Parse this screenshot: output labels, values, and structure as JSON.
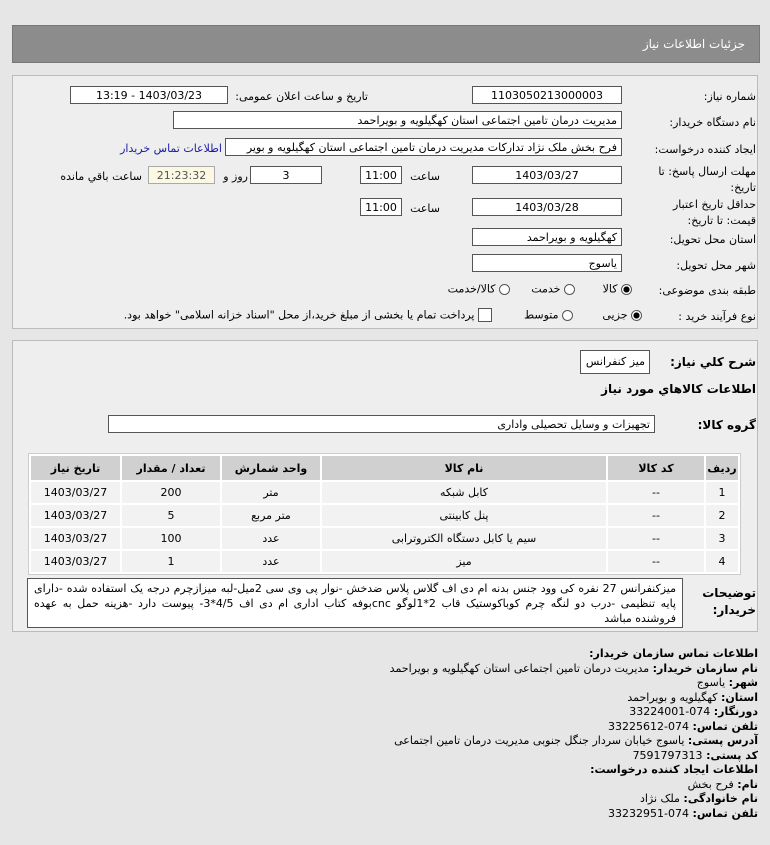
{
  "header": {
    "title": "جزئیات اطلاعات نیاز"
  },
  "form": {
    "need_number_label": "شماره نیاز:",
    "need_number": "1103050213000003",
    "announce_label": "تاریخ و ساعت اعلان عمومی:",
    "announce_value": "1403/03/23 - 13:19",
    "buyer_label": "نام دستگاه خریدار:",
    "buyer": "مدیریت درمان تامین اجتماعی استان کهگیلویه و بویراحمد",
    "creator_label": "ایجاد کننده درخواست:",
    "creator": "فرح بخش ملک نژاد تدارکات مدیریت درمان تامین اجتماعی استان کهگیلویه و بویر",
    "contact_link": "اطلاعات تماس خریدار",
    "deadline_label": "مهلت ارسال پاسخ: تا تاریخ:",
    "deadline_date": "1403/03/27",
    "time_label": "ساعت",
    "deadline_time": "11:00",
    "days": "3",
    "days_label": "روز و",
    "remaining": "21:23:32",
    "remaining_label": "ساعت باقي مانده",
    "validity_label": "حداقل تاریخ اعتبار قیمت: تا تاریخ:",
    "validity_date": "1403/03/28",
    "validity_time": "11:00",
    "province_label": "استان محل تحویل:",
    "province": "کهگیلویه و بویراحمد",
    "city_label": "شهر محل تحویل:",
    "city": "یاسوج",
    "category_label": "طبقه بندی موضوعی:",
    "category_options": [
      "کالا",
      "خدمت",
      "کالا/خدمت"
    ],
    "category_selected": "کالا",
    "process_label": "نوع فرآیند خرید :",
    "process_options": [
      "جزیی",
      "متوسط"
    ],
    "process_selected": "جزیی",
    "payment_note": "پرداخت تمام یا بخشی از مبلغ خرید،از محل \"اسناد خزانه اسلامی\" خواهد بود."
  },
  "need": {
    "summary_label": "شرح کلي نياز:",
    "summary": "میز کنفرانس",
    "goods_title": "اطلاعات كالاهاي مورد نياز",
    "group_label": "گروه کالا:",
    "group": "تجهیزات و وسایل تحصیلی واداری",
    "columns": [
      "ردیف",
      "کد کالا",
      "نام کالا",
      "واحد شمارش",
      "تعداد / مقدار",
      "تاریخ نیاز"
    ],
    "rows": [
      [
        "1",
        "--",
        "کابل شبکه",
        "متر",
        "200",
        "1403/03/27"
      ],
      [
        "2",
        "--",
        "پنل کابینتی",
        "متر مربع",
        "5",
        "1403/03/27"
      ],
      [
        "3",
        "--",
        "سیم یا کابل دستگاه الکتروترابی",
        "عدد",
        "100",
        "1403/03/27"
      ],
      [
        "4",
        "--",
        "میز",
        "عدد",
        "1",
        "1403/03/27"
      ]
    ],
    "desc_label": "توضیحات خریدار:",
    "desc": "میزکنفرانس 27 نفره کی وود جنس بدنه ام دی اف گلاس پلاس ضدخش -نوار پی وی سی 2میل-لبه میزازچرم درجه یک استفاده شده -دارای پایه تنظیمی -درب دو لنگه چرم کوباکوستیک قاب 2*1لوگو cncبوفه کتاب اداری ام دی اف 4/5*3- پیوست دارد -هزینه حمل به عهده فروشنده مباشد"
  },
  "contact": {
    "title": "اطلاعات تماس سازمان خریدار:",
    "org_label": "نام سازمان خریدار:",
    "org": "مدیریت درمان تامین اجتماعی استان کهگیلویه و بویراحمد",
    "city_label": "شهر:",
    "city": "یاسوج",
    "province_label": "استان:",
    "province": "کهگیلویه و بویراحمد",
    "fax_label": "دورنگار:",
    "fax": "074-33224001",
    "phone_label": "تلفن تماس:",
    "phone": "074-33225612",
    "address_label": "آدرس پستی:",
    "address": "یاسوج خیابان سردار جنگل جنوبی مدیریت درمان تامین اجتماعی",
    "postal_label": "کد پستی:",
    "postal": "7591797313",
    "creator_title": "اطلاعات ایجاد کننده درخواست:",
    "name_label": "نام:",
    "name": "فرح بخش",
    "family_label": "نام خانوادگی:",
    "family": "ملک نژاد",
    "creator_phone_label": "تلفن تماس:",
    "creator_phone": "074-33232951"
  }
}
